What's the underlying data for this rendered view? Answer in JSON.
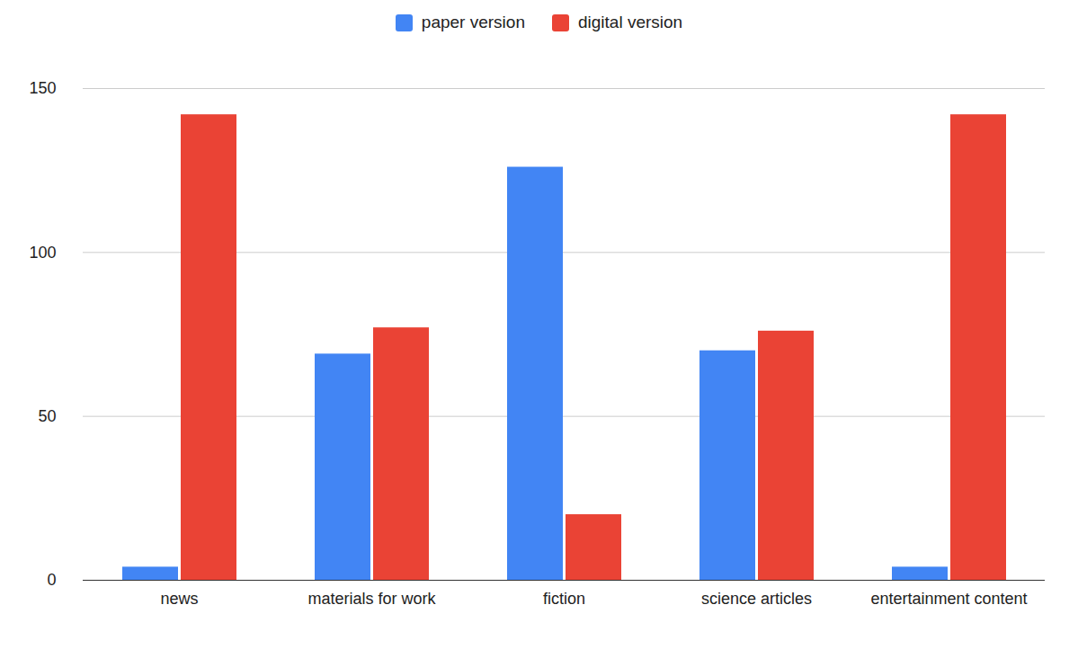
{
  "chart_data": {
    "type": "bar",
    "categories": [
      "news",
      "materials for work",
      "fiction",
      "science articles",
      "entertainment content"
    ],
    "series": [
      {
        "name": "paper version",
        "color": "#4285f4",
        "values": [
          4,
          69,
          126,
          70,
          4
        ]
      },
      {
        "name": "digital version",
        "color": "#ea4335",
        "values": [
          142,
          77,
          20,
          76,
          142
        ]
      }
    ],
    "ylim": [
      0,
      150
    ],
    "yticks": [
      0,
      50,
      100,
      150
    ],
    "grid": true,
    "legend": "top"
  }
}
